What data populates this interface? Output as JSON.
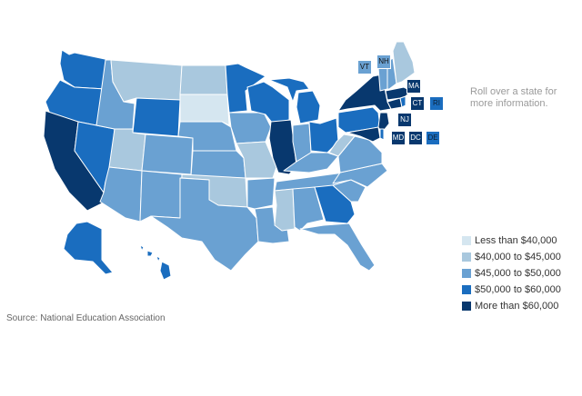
{
  "info_text": "Roll over a state for more information.",
  "source": "Source: National Education Association",
  "colors": {
    "lt40": "#d5e6f0",
    "40to45": "#a9c8de",
    "45to50": "#6aa1d2",
    "50to60": "#1a6dbf",
    "gt60": "#08386e"
  },
  "legend": [
    {
      "label": "Less than $40,000",
      "bucket": "lt40"
    },
    {
      "label": "$40,000 to $45,000",
      "bucket": "40to45"
    },
    {
      "label": "$45,000 to $50,000",
      "bucket": "45to50"
    },
    {
      "label": "$50,000 to $60,000",
      "bucket": "50to60"
    },
    {
      "label": "More than $60,000",
      "bucket": "gt60"
    }
  ],
  "state_buckets": {
    "WA": "50to60",
    "OR": "50to60",
    "CA": "gt60",
    "NV": "50to60",
    "ID": "45to50",
    "MT": "40to45",
    "WY": "50to60",
    "UT": "40to45",
    "AZ": "45to50",
    "CO": "45to50",
    "NM": "45to50",
    "ND": "40to45",
    "SD": "lt40",
    "NE": "45to50",
    "KS": "45to50",
    "OK": "40to45",
    "TX": "45to50",
    "MN": "50to60",
    "IA": "45to50",
    "MO": "40to45",
    "AR": "45to50",
    "LA": "45to50",
    "WI": "50to60",
    "IL": "gt60",
    "MI": "50to60",
    "IN": "45to50",
    "OH": "50to60",
    "KY": "45to50",
    "TN": "45to50",
    "MS": "40to45",
    "AL": "45to50",
    "GA": "50to60",
    "FL": "45to50",
    "SC": "45to50",
    "NC": "45to50",
    "VA": "45to50",
    "WV": "40to45",
    "PA": "50to60",
    "NY": "gt60",
    "ME": "40to45",
    "AK": "50to60",
    "HI": "50to60",
    "VT": "45to50",
    "NH": "45to50",
    "MA": "gt60",
    "CT": "gt60",
    "RI": "50to60",
    "NJ": "gt60",
    "MD": "gt60",
    "DC": "gt60",
    "DE": "50to60"
  },
  "small_state_labels": {
    "VT": "VT",
    "NH": "NH",
    "MA": "MA",
    "CT": "CT",
    "RI": "RI",
    "NJ": "NJ",
    "MD": "MD",
    "DC": "DC",
    "DE": "DE"
  }
}
